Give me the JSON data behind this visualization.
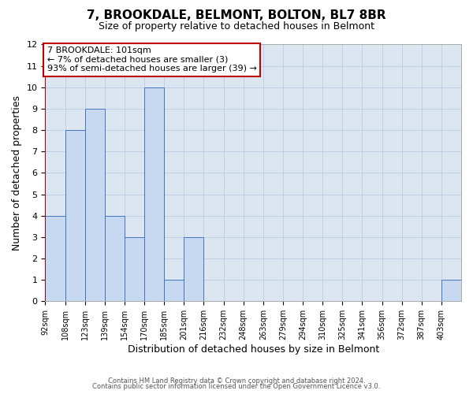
{
  "title": "7, BROOKDALE, BELMONT, BOLTON, BL7 8BR",
  "subtitle": "Size of property relative to detached houses in Belmont",
  "xlabel": "Distribution of detached houses by size in Belmont",
  "ylabel": "Number of detached properties",
  "footer_lines": [
    "Contains HM Land Registry data © Crown copyright and database right 2024.",
    "Contains public sector information licensed under the Open Government Licence v3.0."
  ],
  "bins": [
    "92sqm",
    "108sqm",
    "123sqm",
    "139sqm",
    "154sqm",
    "170sqm",
    "185sqm",
    "201sqm",
    "216sqm",
    "232sqm",
    "248sqm",
    "263sqm",
    "279sqm",
    "294sqm",
    "310sqm",
    "325sqm",
    "341sqm",
    "356sqm",
    "372sqm",
    "387sqm",
    "403sqm"
  ],
  "values": [
    4,
    8,
    9,
    4,
    3,
    10,
    1,
    3,
    0,
    0,
    0,
    0,
    0,
    0,
    0,
    0,
    0,
    0,
    0,
    0,
    1
  ],
  "bar_color": "#c6d9f1",
  "bar_edge_color": "#4472c4",
  "highlight_color": "#c00000",
  "annotation_text": "7 BROOKDALE: 101sqm\n← 7% of detached houses are smaller (3)\n93% of semi-detached houses are larger (39) →",
  "annotation_box_color": "white",
  "annotation_box_edge_color": "#c00000",
  "ylim": [
    0,
    12
  ],
  "yticks": [
    0,
    1,
    2,
    3,
    4,
    5,
    6,
    7,
    8,
    9,
    10,
    11,
    12
  ],
  "grid_color": "#b8cce4",
  "background_color": "#dce6f1",
  "title_fontsize": 11,
  "subtitle_fontsize": 9,
  "ylabel_fontsize": 9,
  "xlabel_fontsize": 9,
  "tick_fontsize": 8,
  "xtick_fontsize": 7,
  "footer_fontsize": 6,
  "annot_fontsize": 8
}
